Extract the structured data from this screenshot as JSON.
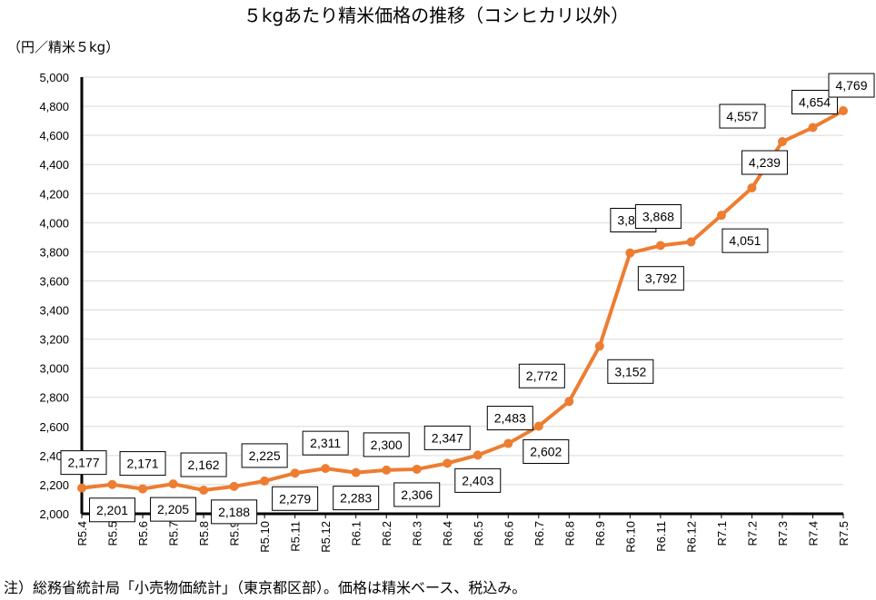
{
  "chart_data": {
    "type": "line",
    "title": "５kgあたり精米価格の推移（コシヒカリ以外）",
    "ylabel": "（円／精米５kg）",
    "xlabel": "",
    "ylim": [
      2000,
      5000
    ],
    "y_ticks": [
      "2,000",
      "2,200",
      "2,400",
      "2,600",
      "2,800",
      "3,000",
      "3,200",
      "3,400",
      "3,600",
      "3,800",
      "4,000",
      "4,200",
      "4,400",
      "4,600",
      "4,800",
      "5,000"
    ],
    "grid": true,
    "legend": "none",
    "color": "#ED7D31",
    "categories": [
      "R5.4",
      "R5.5",
      "R5.6",
      "R5.7",
      "R5.8",
      "R5.9",
      "R5.10",
      "R5.11",
      "R5.12",
      "R6.1",
      "R6.2",
      "R6.3",
      "R6.4",
      "R6.5",
      "R6.6",
      "R6.7",
      "R6.8",
      "R6.9",
      "R6.10",
      "R6.11",
      "R6.12",
      "R7.1",
      "R7.2",
      "R7.3",
      "R7.4",
      "R7.5"
    ],
    "values": [
      2177,
      2201,
      2171,
      2205,
      2162,
      2188,
      2225,
      2279,
      2311,
      2283,
      2300,
      2306,
      2347,
      2403,
      2483,
      2602,
      2772,
      3152,
      3792,
      3843,
      3868,
      4051,
      4239,
      4557,
      4654,
      4769
    ],
    "labels": [
      "2,177",
      "2,201",
      "2,171",
      "2,205",
      "2,162",
      "2,188",
      "2,225",
      "2,279",
      "2,311",
      "2,283",
      "2,300",
      "2,306",
      "2,347",
      "2,403",
      "2,483",
      "2,602",
      "2,772",
      "3,152",
      "3,792",
      "3,843",
      "3,868",
      "4,051",
      "4,239",
      "4,557",
      "4,654",
      "4,769"
    ],
    "label_side": [
      "above",
      "below",
      "above",
      "below",
      "above",
      "below",
      "above",
      "below",
      "above",
      "below",
      "above",
      "below",
      "above",
      "below",
      "above",
      "below",
      "above",
      "below",
      "below",
      "above",
      "above",
      "below",
      "above",
      "above",
      "above",
      "above"
    ]
  },
  "note": "注）総務省統計局「小売物価統計」（東京都区部）。価格は精米ベース、税込み。"
}
